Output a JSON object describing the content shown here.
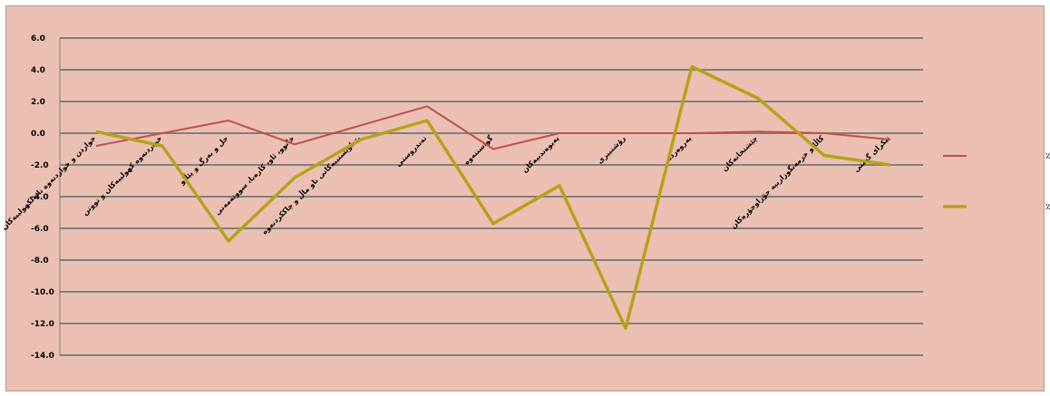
{
  "chart_data": {
    "type": "line",
    "title": "",
    "xlabel": "",
    "ylabel": "",
    "ylim": [
      -14,
      6
    ],
    "ytick_step": 2,
    "ytick_labels": [
      "6.0",
      "4.0",
      "2.0",
      "0.0",
      "-2.0",
      "-4.0",
      "-6.0",
      "-8.0",
      "-10.0",
      "-12.0",
      "-14.0"
    ],
    "grid": true,
    "legend_position": "right",
    "categories": [
      "خواردن و خواردنەوە نائەلکهولییەکان",
      "خواردنەوە کهولییەکان و تووتن",
      "جل و بەرگ و پێڵاو",
      "خانوو، ئاو، کارەبا، سووتەمەنی",
      "پێداویستییەکانی ناو ماڵ و چاککردنەوە",
      "تەندروستی",
      "گواستنەوە",
      "پەیوەندییەکان",
      "رۆشنبیری",
      "پەروەردە",
      "چێشتخانەکان",
      "کاڵا و خزمەتگوزارییە جۆراوجۆرەکان",
      "تێکرای گشتی"
    ],
    "series": [
      {
        "name": "تێکرای گۆڕانی مانگانە٪",
        "color": "#c0504d",
        "values": [
          -0.8,
          0.0,
          0.8,
          -0.7,
          0.5,
          1.7,
          -1.0,
          0.0,
          0.0,
          0.0,
          0.1,
          0.0,
          -0.4
        ]
      },
      {
        "name": "تێکرای گۆڕانی ساڵانە٪",
        "color": "#b5a21a",
        "values": [
          0.1,
          -0.8,
          -6.8,
          -2.8,
          -0.4,
          0.8,
          -5.7,
          -3.3,
          -12.3,
          4.2,
          2.2,
          -1.4,
          -2.0
        ]
      }
    ]
  }
}
